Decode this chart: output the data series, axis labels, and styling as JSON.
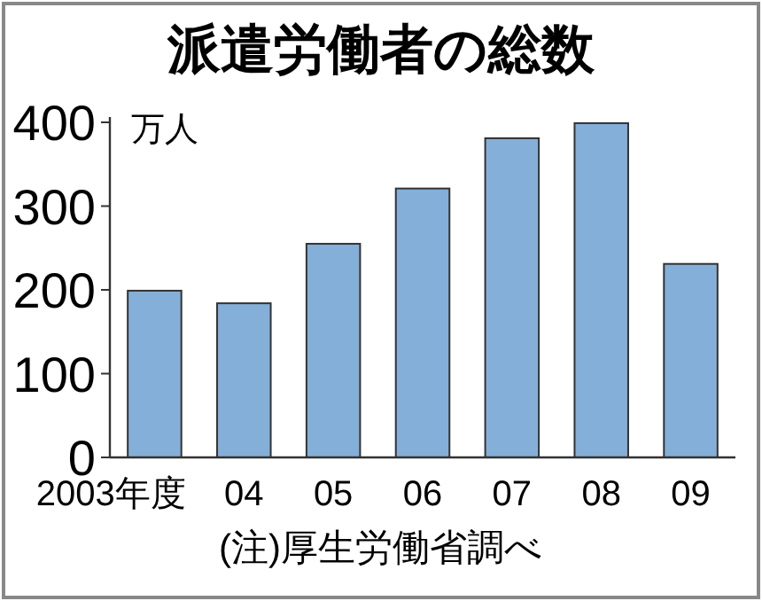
{
  "chart_data": {
    "type": "bar",
    "title": "派遣労働者の総数",
    "ylabel": "万人",
    "categories": [
      "2003年度",
      "04",
      "05",
      "06",
      "07",
      "08",
      "09"
    ],
    "values": [
      199,
      184,
      255,
      321,
      381,
      399,
      231
    ],
    "color": "#84afd8",
    "ylim": [
      0,
      400
    ],
    "yticks": [
      0,
      100,
      200,
      300,
      400
    ],
    "annotations": [
      "(注)厚生労働省調べ"
    ]
  }
}
